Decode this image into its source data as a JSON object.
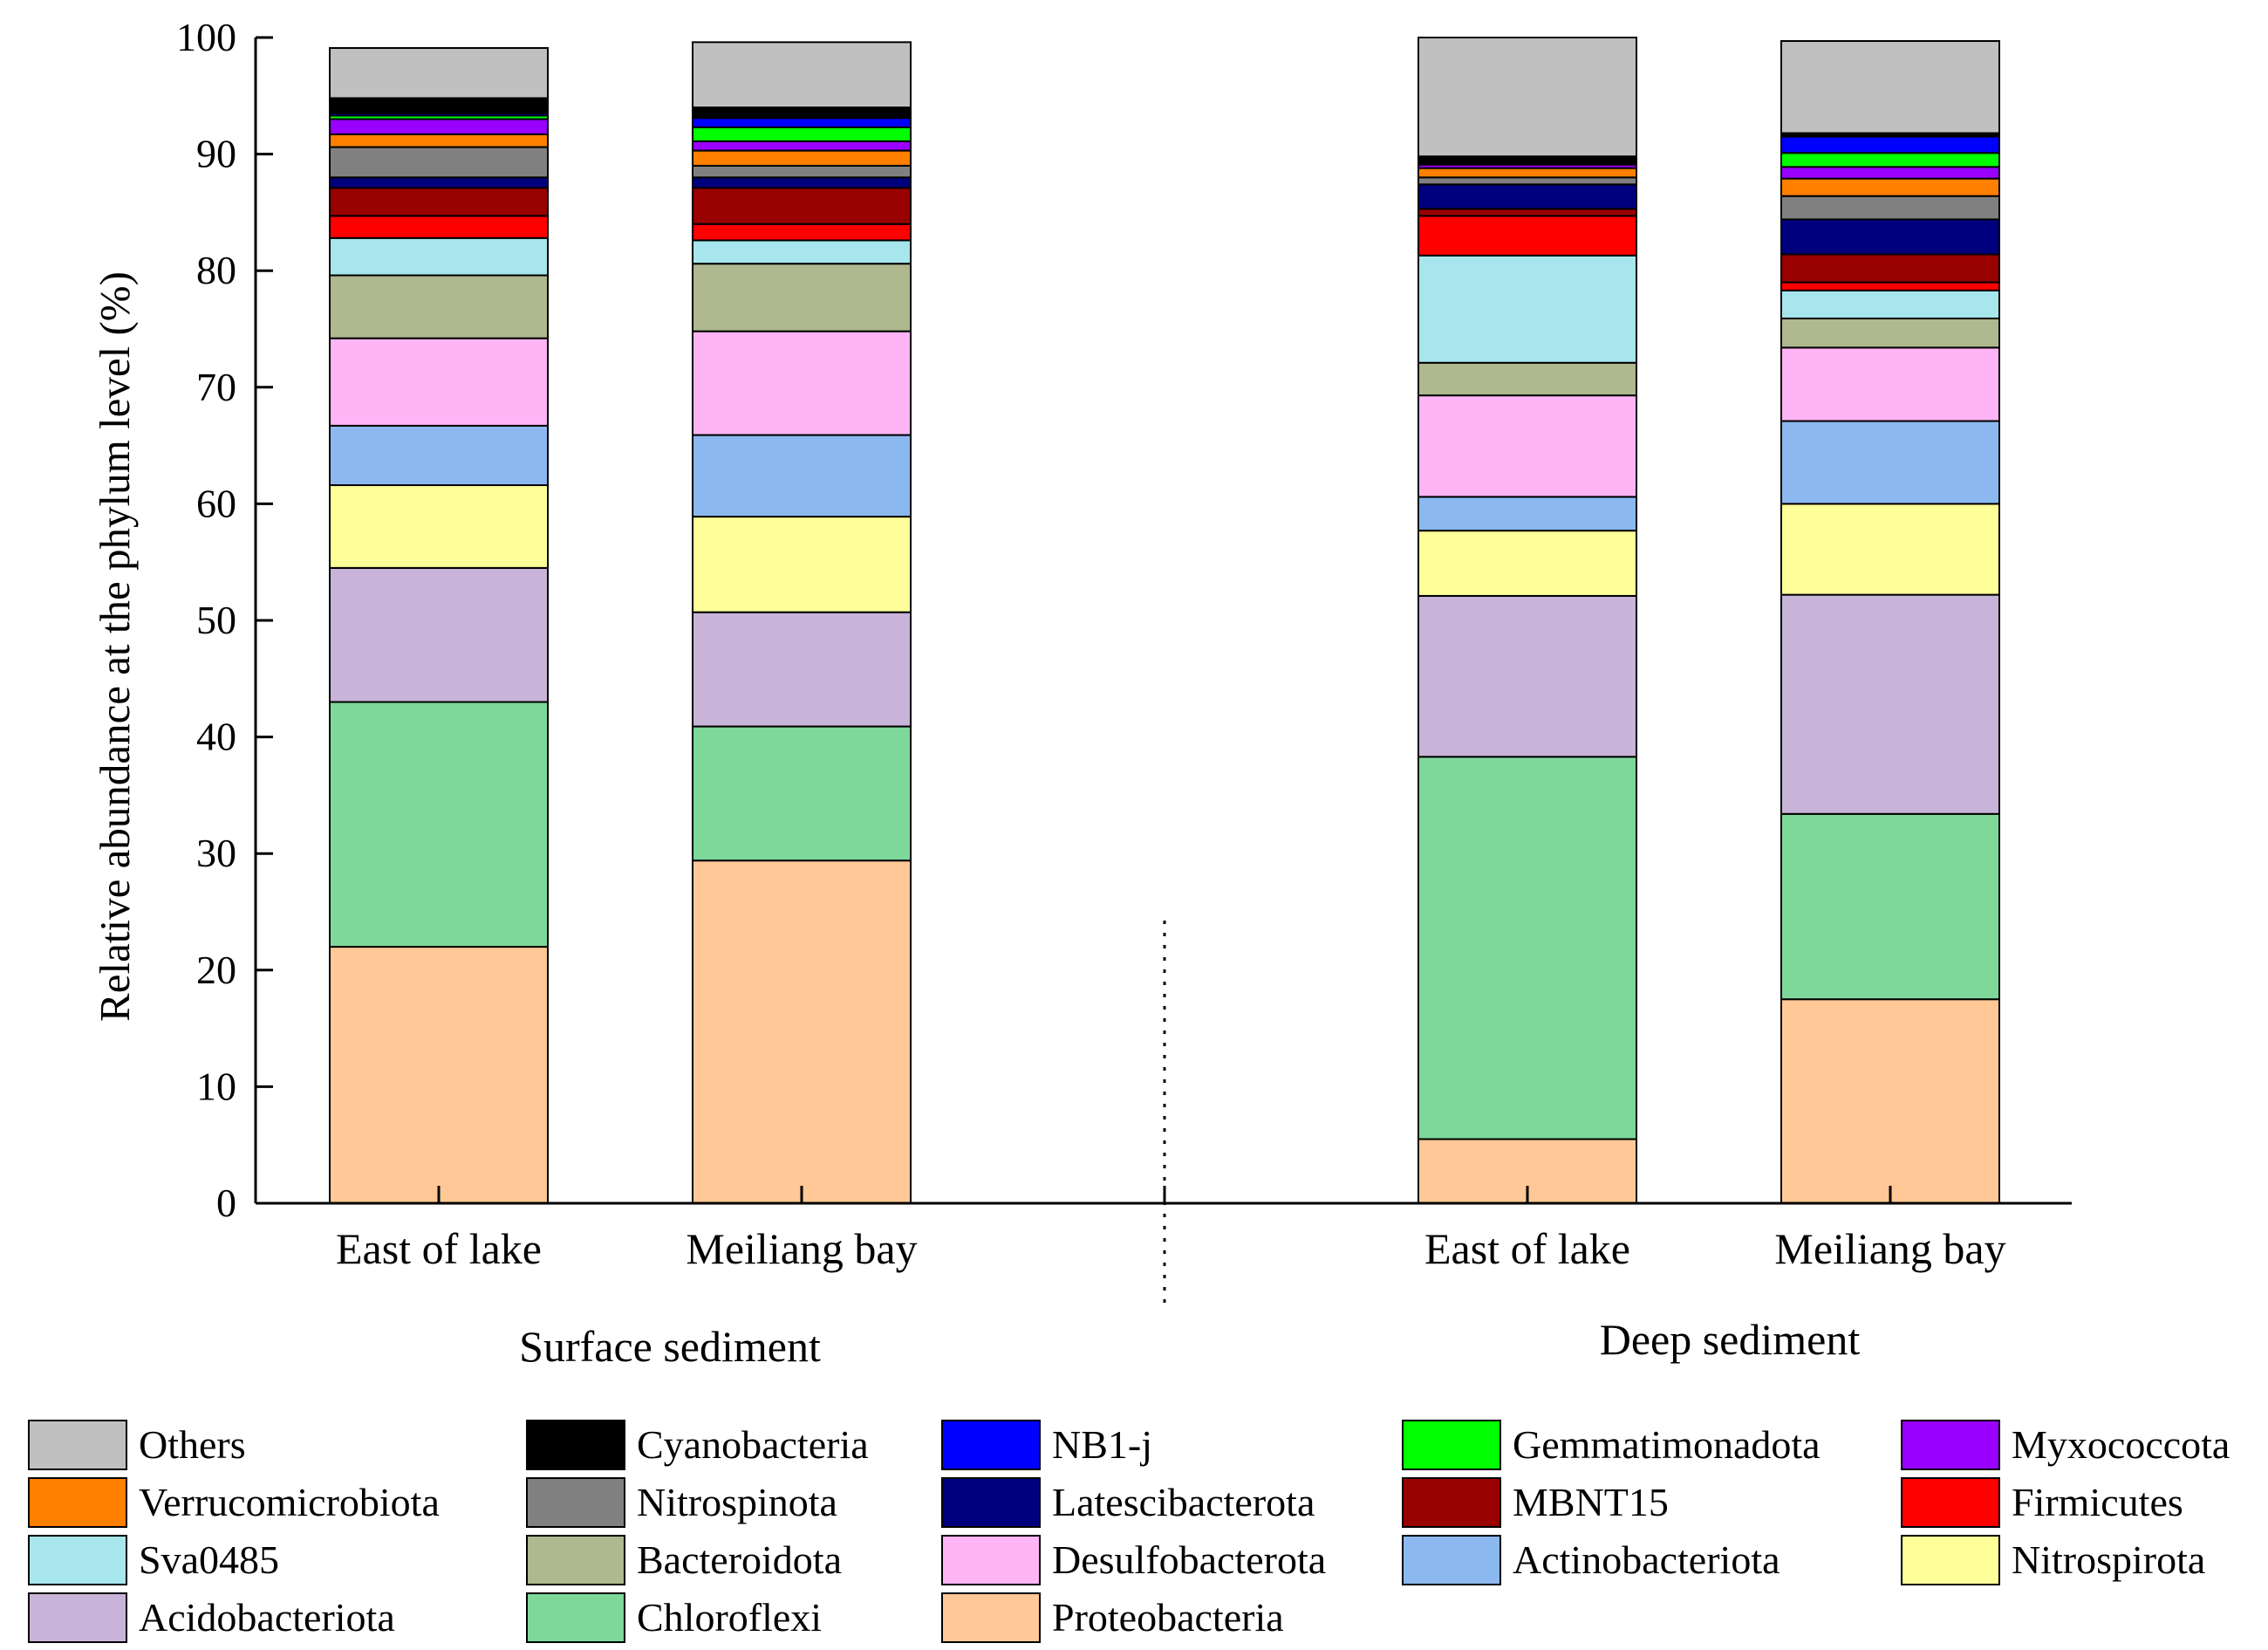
{
  "chart_data": {
    "type": "bar",
    "stacked": true,
    "title": "",
    "xlabel": "",
    "ylabel": "Relative abundance at the phylum level (%)",
    "ylim": [
      0,
      100
    ],
    "yticks": [
      0,
      10,
      20,
      30,
      40,
      50,
      60,
      70,
      80,
      90,
      100
    ],
    "groups": [
      {
        "label": "Surface sediment",
        "categories": [
          "East of lake",
          "Meiliang bay"
        ]
      },
      {
        "label": "Deep sediment",
        "categories": [
          "East of lake",
          "Meiliang bay"
        ]
      }
    ],
    "categories": [
      "East of lake",
      "Meiliang bay",
      "East of lake",
      "Meiliang bay"
    ],
    "series": [
      {
        "name": "Proteobacteria",
        "color": "#FFC896",
        "values": [
          22.0,
          29.4,
          5.5,
          17.5
        ]
      },
      {
        "name": "Chloroflexi",
        "color": "#7ED89A",
        "values": [
          21.0,
          11.5,
          32.8,
          15.9
        ]
      },
      {
        "name": "Acidobacteriota",
        "color": "#C8B4D8",
        "values": [
          11.5,
          9.8,
          13.8,
          18.8
        ]
      },
      {
        "name": "Nitrospirota",
        "color": "#FFFF99",
        "values": [
          7.1,
          8.2,
          5.6,
          7.8
        ]
      },
      {
        "name": "Actinobacteriota",
        "color": "#8CB8F0",
        "values": [
          5.1,
          7.0,
          2.9,
          7.1
        ]
      },
      {
        "name": "Desulfobacterota",
        "color": "#FFB4F5",
        "values": [
          7.5,
          8.9,
          8.7,
          6.3
        ]
      },
      {
        "name": "Bacteroidota",
        "color": "#AFB88E",
        "values": [
          5.4,
          5.8,
          2.8,
          2.5
        ]
      },
      {
        "name": "Sva0485",
        "color": "#A6E6EC",
        "values": [
          3.2,
          2.0,
          9.2,
          2.4
        ]
      },
      {
        "name": "Firmicutes",
        "color": "#FF0000",
        "values": [
          1.9,
          1.4,
          3.4,
          0.7
        ]
      },
      {
        "name": "MBNT15",
        "color": "#990000",
        "values": [
          2.4,
          3.1,
          0.6,
          2.4
        ]
      },
      {
        "name": "Latescibacterota",
        "color": "#00007F",
        "values": [
          0.9,
          0.9,
          2.1,
          3.0
        ]
      },
      {
        "name": "Nitrospinota",
        "color": "#808080",
        "values": [
          2.6,
          1.0,
          0.6,
          2.0
        ]
      },
      {
        "name": "Verrucomicrobiota",
        "color": "#FF7F00",
        "values": [
          1.1,
          1.3,
          0.8,
          1.5
        ]
      },
      {
        "name": "Myxococcota",
        "color": "#9900FF",
        "values": [
          1.3,
          0.8,
          0.3,
          1.0
        ]
      },
      {
        "name": "Gemmatimonadota",
        "color": "#00FF00",
        "values": [
          0.3,
          1.2,
          0.1,
          1.2
        ]
      },
      {
        "name": "NB1-j",
        "color": "#0000FF",
        "values": [
          0.2,
          0.8,
          0.1,
          1.4
        ]
      },
      {
        "name": "Cyanobacteria",
        "color": "#000000",
        "values": [
          1.3,
          0.9,
          0.5,
          0.3
        ]
      },
      {
        "name": "Others",
        "color": "#C0C0C0",
        "values": [
          4.3,
          5.6,
          10.2,
          7.9
        ]
      }
    ],
    "legend": {
      "placement": "bottom",
      "columns": 5,
      "order": [
        "Others",
        "Cyanobacteria",
        "NB1-j",
        "Gemmatimonadota",
        "Myxococcota",
        "Verrucomicrobiota",
        "Nitrospinota",
        "Latescibacterota",
        "MBNT15",
        "Firmicutes",
        "Sva0485",
        "Bacteroidota",
        "Desulfobacterota",
        "Actinobacteriota",
        "Nitrospirota",
        "Acidobacteriota",
        "Chloroflexi",
        "Proteobacteria"
      ]
    }
  }
}
